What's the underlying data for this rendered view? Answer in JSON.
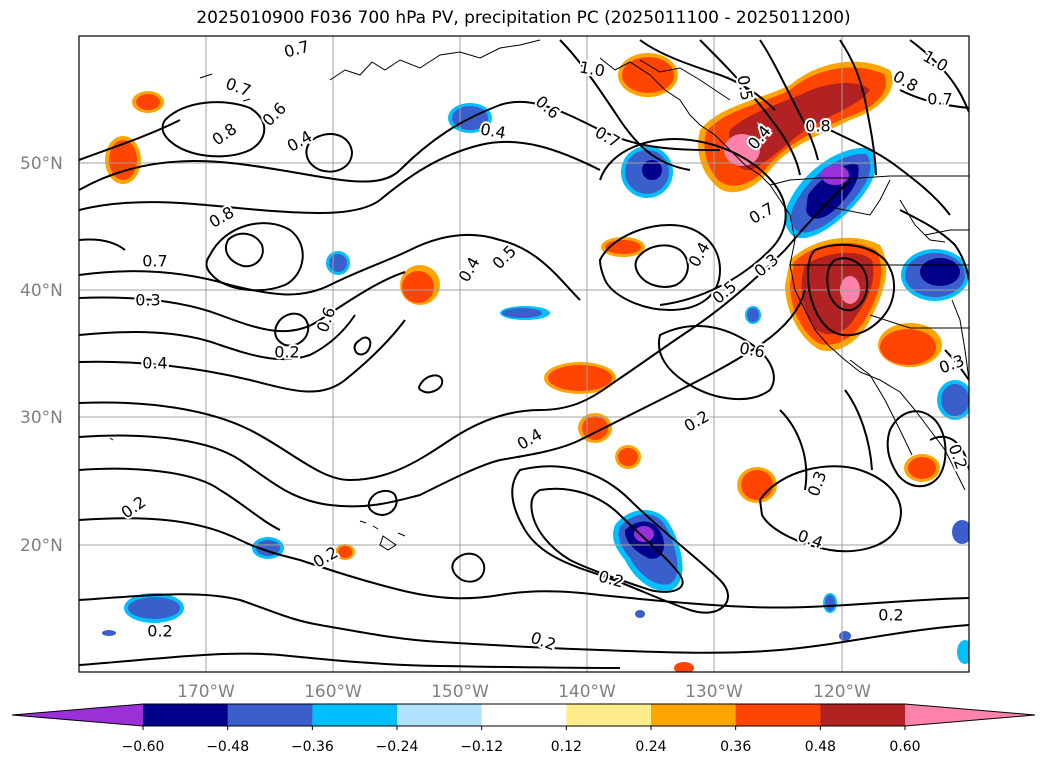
{
  "title": "2025010900 F036 700 hPa PV, precipitation PC (2025011100 - 2025011200)",
  "axes": {
    "lat_labels": [
      "50°N",
      "40°N",
      "30°N",
      "20°N"
    ],
    "lon_labels": [
      "170°W",
      "160°W",
      "150°W",
      "140°W",
      "130°W",
      "120°W"
    ]
  },
  "contour_labels": [
    {
      "text": "0.7"
    },
    {
      "text": "1.0"
    },
    {
      "text": "0.7"
    },
    {
      "text": "0.8"
    },
    {
      "text": "0.6"
    },
    {
      "text": "0.4"
    },
    {
      "text": "0.4"
    },
    {
      "text": "0.6"
    },
    {
      "text": "0.7"
    },
    {
      "text": "0.5"
    },
    {
      "text": "0.8"
    },
    {
      "text": "1.0"
    },
    {
      "text": "0.7"
    },
    {
      "text": "0.8"
    },
    {
      "text": "0.7"
    },
    {
      "text": "0.4"
    },
    {
      "text": "0.3"
    },
    {
      "text": "0.5"
    },
    {
      "text": "0.4"
    },
    {
      "text": "0.8"
    },
    {
      "text": "0.7"
    },
    {
      "text": "0.3"
    },
    {
      "text": "0.4"
    },
    {
      "text": "0.5"
    },
    {
      "text": "0.6"
    },
    {
      "text": "0.4"
    },
    {
      "text": "0.2"
    },
    {
      "text": "0.6"
    },
    {
      "text": "0.3"
    },
    {
      "text": "0.4"
    },
    {
      "text": "0.2"
    },
    {
      "text": "0.3"
    },
    {
      "text": "0.4"
    },
    {
      "text": "0.2"
    },
    {
      "text": "0.2"
    },
    {
      "text": "0.2"
    },
    {
      "text": "0.2"
    },
    {
      "text": "0.2"
    },
    {
      "text": "0.2"
    },
    {
      "text": "0.2"
    }
  ],
  "colorbar": {
    "ticks": [
      "−0.60",
      "−0.48",
      "−0.36",
      "−0.24",
      "−0.12",
      "0.12",
      "0.24",
      "0.36",
      "0.48",
      "0.60"
    ],
    "colors": [
      "#9b30d9",
      "#00008b",
      "#3a5fcd",
      "#00bfff",
      "#b0e2ff",
      "#ffffff",
      "#ffec8b",
      "#ffa500",
      "#ff4500",
      "#b22222",
      "#ff82ab"
    ]
  }
}
